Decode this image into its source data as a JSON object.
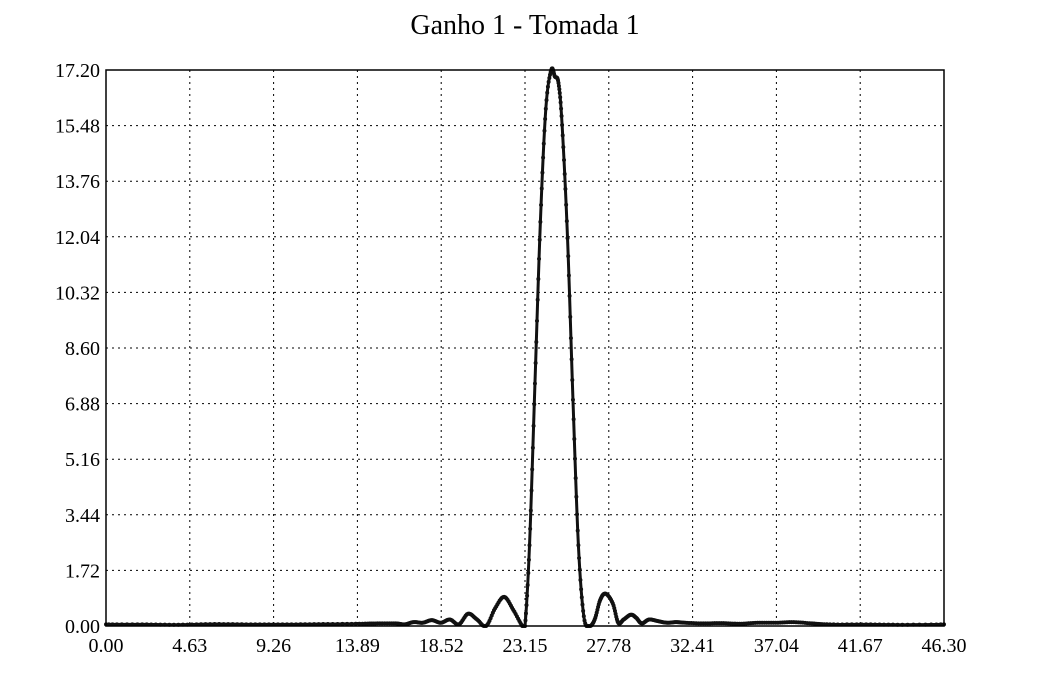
{
  "colors": {
    "line": "#111111",
    "background": "#ffffff"
  },
  "chart_data": {
    "type": "line",
    "title": "Ganho 1 - Tomada 1",
    "xlabel": "",
    "ylabel": "",
    "xlim": [
      0,
      46.3
    ],
    "ylim": [
      0,
      17.2
    ],
    "grid": true,
    "x_ticks": [
      "0.00",
      "4.63",
      "9.26",
      "13.89",
      "18.52",
      "23.15",
      "27.78",
      "32.41",
      "37.04",
      "41.67",
      "46.30"
    ],
    "y_ticks": [
      "0.00",
      "1.72",
      "3.44",
      "5.16",
      "6.88",
      "8.60",
      "10.32",
      "12.04",
      "13.76",
      "15.48",
      "17.20"
    ],
    "x_marker": 23.15,
    "series": [
      {
        "name": "",
        "x": [
          0,
          2,
          4,
          6,
          8,
          10,
          12,
          14,
          15,
          16,
          16.5,
          17,
          17.5,
          18,
          18.5,
          19,
          19.5,
          20,
          20.5,
          21,
          21.5,
          22,
          22.5,
          23,
          23.15,
          23.4,
          23.7,
          24,
          24.3,
          24.6,
          24.8,
          25,
          25.2,
          25.5,
          25.8,
          26.1,
          26.4,
          26.7,
          27,
          27.3,
          27.6,
          28,
          28.3,
          28.6,
          29,
          29.3,
          29.6,
          30,
          30.5,
          31,
          31.5,
          32,
          33,
          34,
          35,
          36,
          37,
          38,
          39,
          40,
          42,
          44,
          46.3
        ],
        "y": [
          0.05,
          0.05,
          0.04,
          0.06,
          0.05,
          0.05,
          0.06,
          0.07,
          0.08,
          0.08,
          0.05,
          0.12,
          0.1,
          0.18,
          0.1,
          0.2,
          0.05,
          0.38,
          0.2,
          0.0,
          0.55,
          0.9,
          0.5,
          0.0,
          0.0,
          2.5,
          7.5,
          12.5,
          16.0,
          17.2,
          17.0,
          16.8,
          15.5,
          12.0,
          7.0,
          2.5,
          0.3,
          0.0,
          0.2,
          0.8,
          1.0,
          0.7,
          0.1,
          0.2,
          0.35,
          0.25,
          0.08,
          0.2,
          0.15,
          0.1,
          0.12,
          0.1,
          0.08,
          0.09,
          0.07,
          0.1,
          0.1,
          0.12,
          0.08,
          0.05,
          0.05,
          0.04,
          0.05
        ]
      }
    ]
  }
}
